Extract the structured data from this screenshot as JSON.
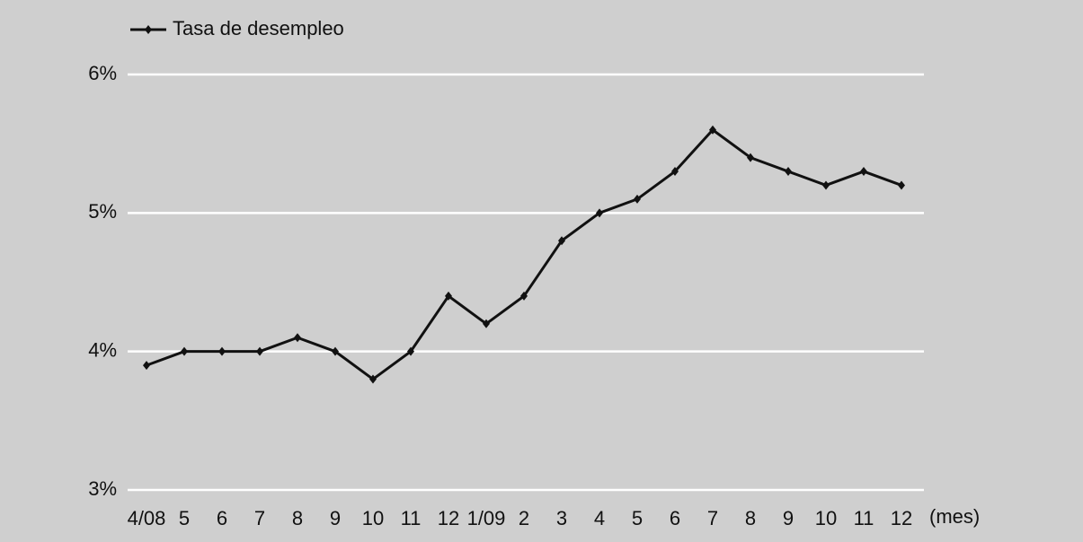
{
  "chart_data": {
    "type": "line",
    "categories": [
      "4/08",
      "5",
      "6",
      "7",
      "8",
      "9",
      "10",
      "11",
      "12",
      "1/09",
      "2",
      "3",
      "4",
      "5",
      "6",
      "7",
      "8",
      "9",
      "10",
      "11",
      "12"
    ],
    "series": [
      {
        "name": "Tasa de desempleo",
        "color": "#111111",
        "values": [
          3.9,
          4.0,
          4.0,
          4.0,
          4.1,
          4.0,
          3.8,
          4.0,
          4.4,
          4.2,
          4.4,
          4.8,
          5.0,
          5.1,
          5.3,
          5.6,
          5.4,
          5.3,
          5.2,
          5.3,
          5.2
        ]
      }
    ],
    "ylim": [
      3,
      6
    ],
    "yticks": [
      {
        "value": 3,
        "label": "3%"
      },
      {
        "value": 4,
        "label": "4%"
      },
      {
        "value": 5,
        "label": "5%"
      },
      {
        "value": 6,
        "label": "6%"
      }
    ],
    "x_axis_note": "(mes)",
    "grid": true,
    "legend": "top-left"
  }
}
